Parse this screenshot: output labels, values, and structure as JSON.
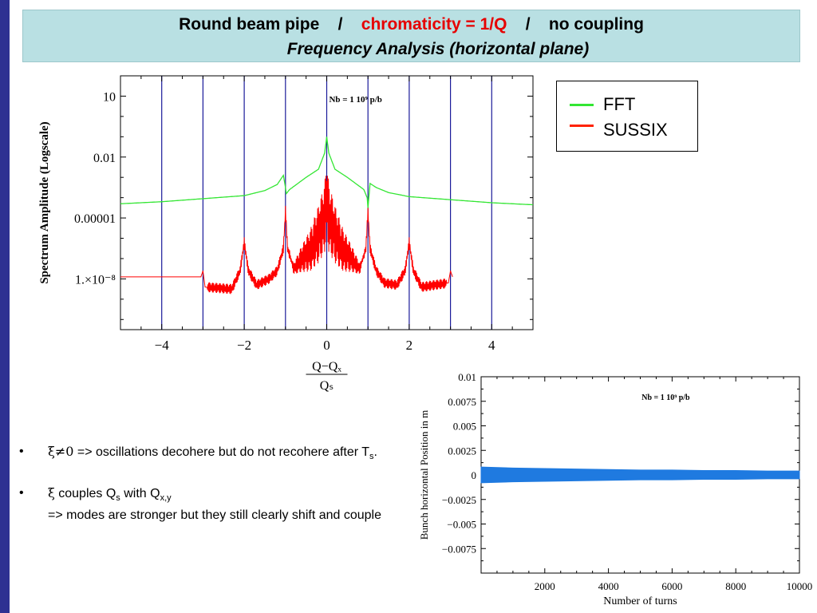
{
  "slide": {
    "title_part1": "Round beam pipe    /    ",
    "title_part2": "chromaticity = 1/Q",
    "title_part3": "    /    no coupling",
    "subtitle": "Frequency Analysis (horizontal plane)"
  },
  "legend": {
    "items": [
      {
        "label": "FFT",
        "color": "#33e633"
      },
      {
        "label": "SUSSIX",
        "color": "#ff2200"
      }
    ]
  },
  "bullets": {
    "b1_sym": "ξ≠0",
    "b1_text": " => oscillations decohere but do not recohere after T",
    "b1_sub": "s",
    "b1_end": ".",
    "b2_sym": "ξ",
    "b2_text": " couples Q",
    "b2_sub1": "s",
    "b2_mid": " with Q",
    "b2_sub2": "x,y",
    "b2_line2": "=> modes are stronger but they still clearly shift and couple"
  },
  "chart_data": [
    {
      "type": "line",
      "title": "",
      "annotation": "Nb = 1 10⁹ p/b",
      "ylabel": "Spectrum Amplitude (Logscale)",
      "xlabel_num": "Q−Qₓ",
      "xlabel_den": "Qₛ",
      "xlim": [
        -5,
        5
      ],
      "ylim_log10": [
        -10.5,
        2
      ],
      "x_ticks": [
        -4,
        -2,
        0,
        2,
        4
      ],
      "x_tick_labels": [
        "−4",
        "−2",
        "0",
        "2",
        "4"
      ],
      "y_ticks_log10": [
        1,
        -2,
        -5,
        -8
      ],
      "y_tick_labels": [
        "10",
        "0.01",
        "0.00001",
        "1.×10⁻⁸"
      ],
      "vlines": [
        -4,
        -3,
        -2,
        -1,
        0,
        1,
        2,
        3,
        4
      ],
      "vline_color": "#1a1a9a",
      "series": [
        {
          "name": "FFT",
          "color": "#33e633",
          "x": [
            -5,
            -4,
            -3,
            -2,
            -1.5,
            -1.2,
            -1.05,
            -1.0,
            -0.98,
            -0.9,
            -0.5,
            -0.2,
            -0.05,
            0,
            0.05,
            0.2,
            0.5,
            0.9,
            0.98,
            1.0,
            1.05,
            1.2,
            1.5,
            2,
            3,
            4,
            5
          ],
          "y_log10": [
            -4.3,
            -4.2,
            -4.05,
            -3.9,
            -3.65,
            -3.35,
            -2.9,
            -3.5,
            -3.8,
            -3.6,
            -3.0,
            -2.6,
            -1.8,
            -1.0,
            -1.8,
            -2.6,
            -3.0,
            -3.6,
            -4.0,
            -4.5,
            -3.3,
            -3.5,
            -3.75,
            -3.95,
            -4.1,
            -4.25,
            -4.35
          ]
        },
        {
          "name": "SUSSIX",
          "color": "#ff0000",
          "x": [
            -5,
            -3.05,
            -3.0,
            -2.95,
            -2.3,
            -2.1,
            -2.0,
            -1.9,
            -1.7,
            -1.4,
            -1.2,
            -1.05,
            -1.0,
            -0.95,
            -0.8,
            -0.6,
            -0.4,
            -0.2,
            -0.05,
            0,
            0.05,
            0.2,
            0.4,
            0.6,
            0.8,
            0.95,
            1.0,
            1.05,
            1.2,
            1.4,
            1.7,
            1.9,
            2.0,
            2.1,
            2.3,
            2.95,
            3.0,
            3.05
          ],
          "y_log10": [
            -7.9,
            -7.9,
            -7.6,
            -8.4,
            -8.5,
            -7.6,
            -6.2,
            -7.6,
            -8.3,
            -8.0,
            -7.6,
            -6.5,
            -4.6,
            -6.5,
            -7.5,
            -7.0,
            -6.6,
            -5.8,
            -5.0,
            -3.9,
            -5.0,
            -5.8,
            -6.6,
            -7.0,
            -7.5,
            -6.5,
            -4.6,
            -6.5,
            -7.6,
            -8.2,
            -8.3,
            -7.6,
            -6.2,
            -7.6,
            -8.4,
            -8.2,
            -7.6,
            -7.9
          ]
        }
      ]
    },
    {
      "type": "line",
      "title": "",
      "annotation": "Nb = 1 10⁹ p/b",
      "ylabel": "Bunch horizontal Position in m",
      "xlabel": "Number of turns",
      "xlim": [
        0,
        10000
      ],
      "ylim": [
        -0.01,
        0.01
      ],
      "x_ticks": [
        2000,
        4000,
        6000,
        8000,
        10000
      ],
      "x_tick_labels": [
        "2000",
        "4000",
        "6000",
        "8000",
        "10000"
      ],
      "y_ticks": [
        0.01,
        0.0075,
        0.005,
        0.0025,
        0,
        -0.0025,
        -0.005,
        -0.0075
      ],
      "y_tick_labels": [
        "0.01",
        "0.0075",
        "0.005",
        "0.0025",
        "0",
        "−0.0025",
        "−0.005",
        "−0.0075"
      ],
      "series": [
        {
          "color": "#1f7ae0",
          "x": [
            0,
            1000,
            2000,
            3000,
            4000,
            5000,
            6000,
            7000,
            8000,
            9000,
            10000
          ],
          "upper": [
            0.0008,
            0.0007,
            0.00065,
            0.0006,
            0.00055,
            0.0005,
            0.0005,
            0.00045,
            0.00045,
            0.0004,
            0.0004
          ],
          "lower": [
            -0.0008,
            -0.0007,
            -0.00065,
            -0.0006,
            -0.00055,
            -0.0005,
            -0.0005,
            -0.00045,
            -0.00045,
            -0.0004,
            -0.0004
          ]
        }
      ]
    }
  ]
}
